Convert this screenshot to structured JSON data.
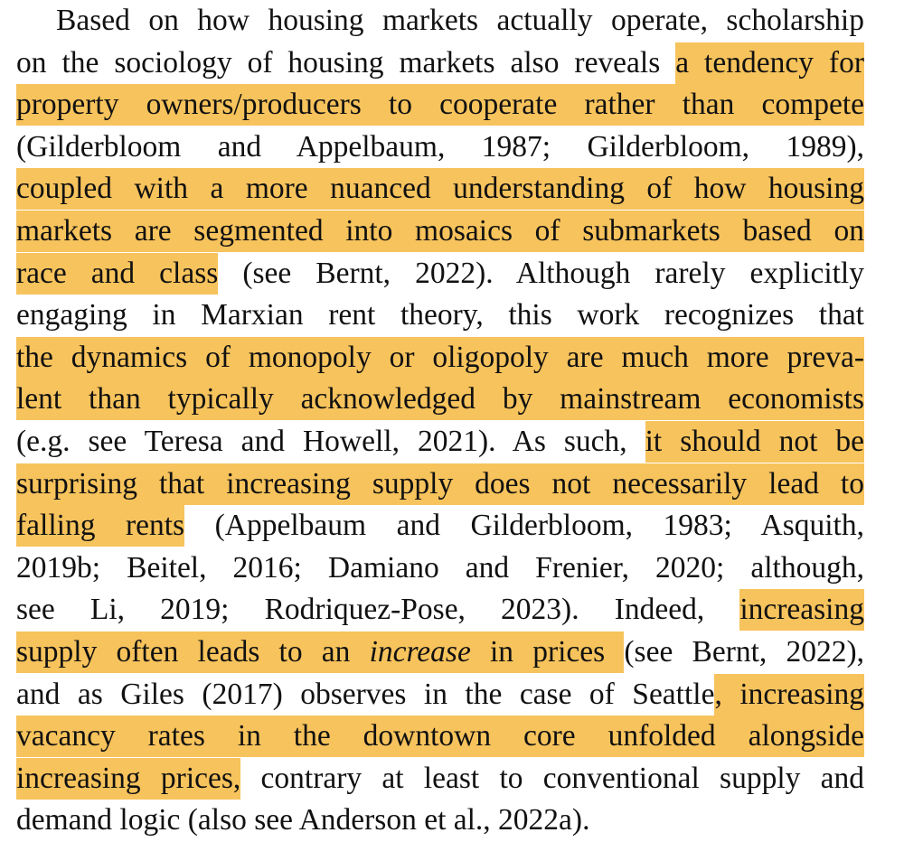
{
  "highlight_color": "#f7c35c",
  "paragraph": {
    "lines": [
      [
        {
          "text": "Based on how housing markets actually operate, scholarship"
        }
      ],
      [
        {
          "text": "on the sociology of housing markets also reveals "
        },
        {
          "text": "a tendency for",
          "hl": true
        }
      ],
      [
        {
          "text": "property owners/producers to cooperate rather than compete",
          "hl": true
        }
      ],
      [
        {
          "text": "(Gilderbloom and Appelbaum, 1987; Gilderbloom, 1989),"
        }
      ],
      [
        {
          "text": "coupled with a more nuanced understanding of how housing",
          "hl": true
        }
      ],
      [
        {
          "text": "markets are segmented into mosaics of submarkets based on",
          "hl": true
        }
      ],
      [
        {
          "text": "race and class",
          "hl": true
        },
        {
          "text": " (see Bernt, 2022). Although rarely explicitly"
        }
      ],
      [
        {
          "text": "engaging in Marxian rent theory, this work recognizes that"
        }
      ],
      [
        {
          "text": "the dynamics of monopoly or oligopoly are much more preva-",
          "hl": true
        }
      ],
      [
        {
          "text": "lent than typically acknowledged by mainstream economists",
          "hl": true
        }
      ],
      [
        {
          "text": "(e.g. see Teresa and Howell, 2021). As such, "
        },
        {
          "text": "it should not be",
          "hl": true
        }
      ],
      [
        {
          "text": "surprising that increasing supply does not necessarily lead to",
          "hl": true
        }
      ],
      [
        {
          "text": "falling rents",
          "hl": true
        },
        {
          "text": " (Appelbaum and Gilderbloom, 1983; Asquith,"
        }
      ],
      [
        {
          "text": "2019b; Beitel, 2016; Damiano and Frenier, 2020; although,"
        }
      ],
      [
        {
          "text": "see Li, 2019; Rodriquez-Pose, 2023). Indeed, "
        },
        {
          "text": "increasing",
          "hl": true
        }
      ],
      [
        {
          "text": "supply often leads to an ",
          "hl": true
        },
        {
          "text": "increase",
          "hl": true,
          "italic": true
        },
        {
          "text": " in prices ",
          "hl": true
        },
        {
          "text": "(see Bernt, 2022),"
        }
      ],
      [
        {
          "text": "and as Giles (2017) observes in the case of Seattle"
        },
        {
          "text": ", increasing",
          "hl": true
        }
      ],
      [
        {
          "text": "vacancy rates in the downtown core unfolded alongside",
          "hl": true
        }
      ],
      [
        {
          "text": "increasing prices,",
          "hl": true
        },
        {
          "text": " contrary at least to conventional supply and"
        }
      ],
      [
        {
          "text": "demand logic (also see Anderson et al., 2022a)."
        }
      ]
    ]
  }
}
